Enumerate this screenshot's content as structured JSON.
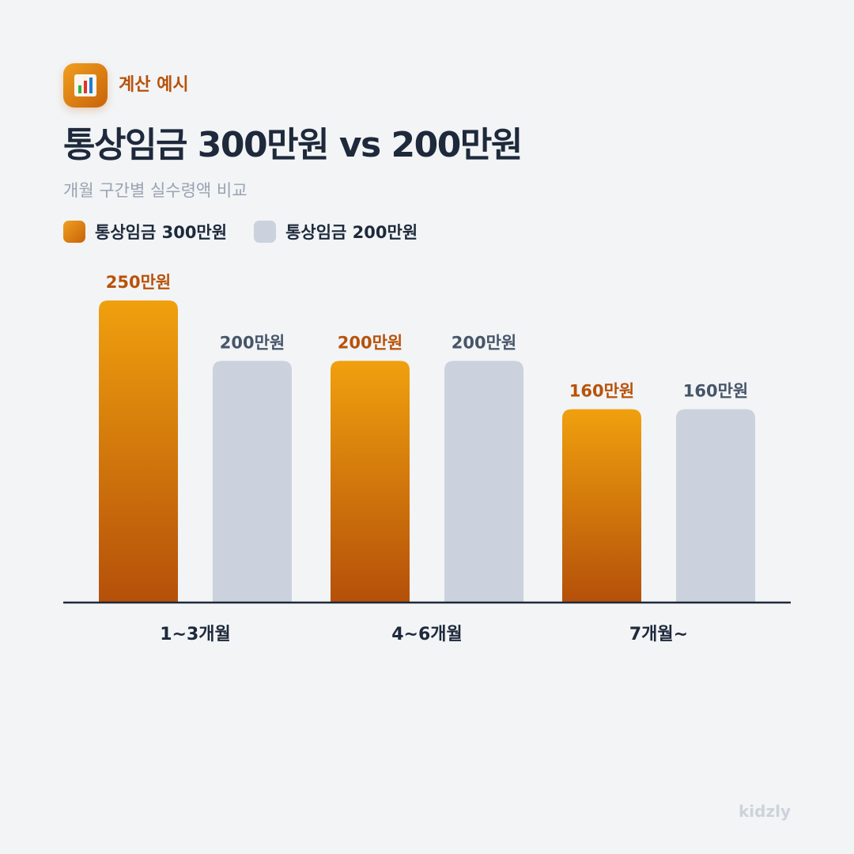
{
  "header": {
    "badge_label": "계산 예시",
    "title": "통상임금 300만원 vs 200만원",
    "subtitle": "개월 구간별 실수령액 비교"
  },
  "legend": [
    {
      "label": "통상임금 300만원",
      "color": "#e08a12"
    },
    {
      "label": "통상임금 200만원",
      "color": "#cbd2dd"
    }
  ],
  "chart_data": {
    "type": "bar",
    "categories": [
      "1~3개월",
      "4~6개월",
      "7개월~"
    ],
    "series": [
      {
        "name": "통상임금 300만원",
        "values": [
          250,
          200,
          160
        ],
        "labels": [
          "250만원",
          "200만원",
          "160만원"
        ],
        "color": "#e08a12",
        "label_color": "#b8520a"
      },
      {
        "name": "통상임금 200만원",
        "values": [
          200,
          200,
          160
        ],
        "labels": [
          "200만원",
          "200만원",
          "160만원"
        ],
        "color": "#cbd2dd",
        "label_color": "#475569"
      }
    ],
    "ylim": [
      0,
      250
    ],
    "grid": false,
    "legend_position": "top-left"
  },
  "watermark": "kidzly"
}
